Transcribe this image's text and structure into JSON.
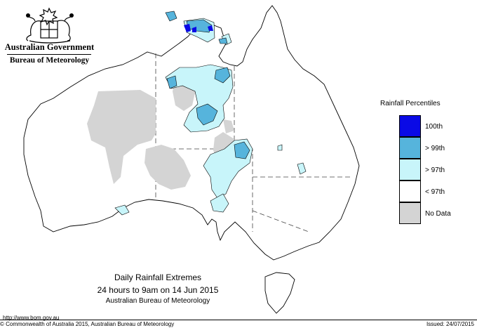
{
  "branding": {
    "government": "Australian Government",
    "agency": "Bureau of Meteorology"
  },
  "legend": {
    "title": "Rainfall Percentiles",
    "items": [
      {
        "label": "100th",
        "color": "#0a0ae6"
      },
      {
        "label": "> 99th",
        "color": "#56b4dc"
      },
      {
        "label": "> 97th",
        "color": "#c8f5fa"
      },
      {
        "label": "< 97th",
        "color": "#ffffff"
      },
      {
        "label": "No Data",
        "color": "#d4d4d4"
      }
    ]
  },
  "caption": {
    "line1": "Daily Rainfall Extremes",
    "line2": "24 hours to 9am on 14 Jun 2015",
    "line3": "Australian Bureau of Meteorology"
  },
  "footer": {
    "url": "http://www.bom.gov.au",
    "copyright": "© Commonwealth of Australia 2015, Australian Bureau of Meteorology",
    "issued": "Issued: 24/07/2015"
  },
  "colors": {
    "no_data": "#d4d4d4",
    "above_97": "#c8f5fa",
    "above_99": "#56b4dc",
    "p100": "#0a0ae6",
    "coast": "#000000"
  }
}
